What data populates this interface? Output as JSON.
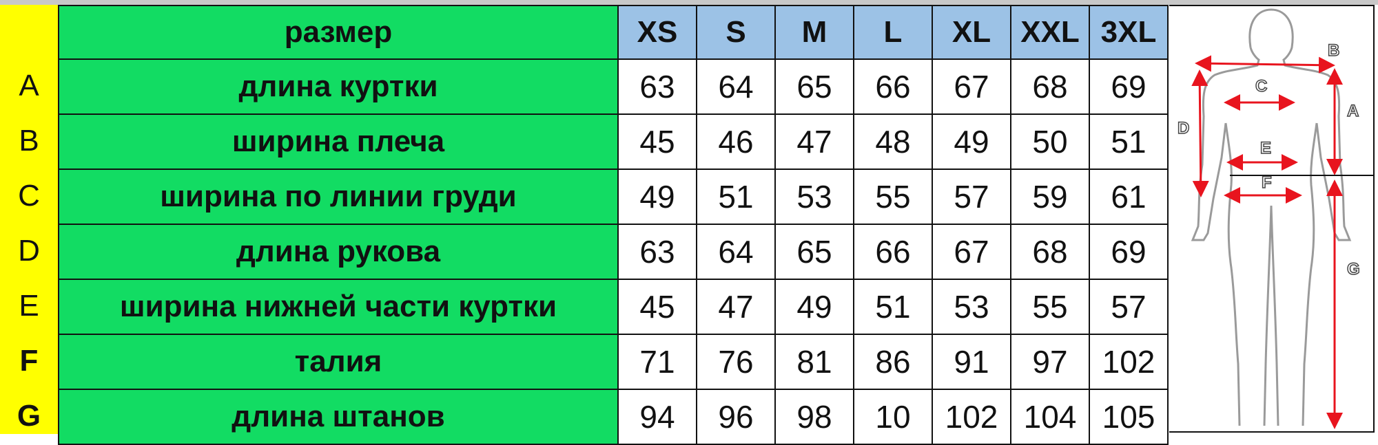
{
  "row_letters": [
    "A",
    "B",
    "C",
    "D",
    "E",
    "F",
    "G"
  ],
  "header": {
    "label": "размер",
    "sizes": [
      "XS",
      "S",
      "M",
      "L",
      "XL",
      "XXL",
      "3XL"
    ]
  },
  "rows": [
    {
      "label": "длина куртки",
      "values": [
        "63",
        "64",
        "65",
        "66",
        "67",
        "68",
        "69"
      ]
    },
    {
      "label": "ширина плеча",
      "values": [
        "45",
        "46",
        "47",
        "48",
        "49",
        "50",
        "51"
      ]
    },
    {
      "label": "ширина по линии груди",
      "values": [
        "49",
        "51",
        "53",
        "55",
        "57",
        "59",
        "61"
      ]
    },
    {
      "label": "длина рукова",
      "values": [
        "63",
        "64",
        "65",
        "66",
        "67",
        "68",
        "69"
      ]
    },
    {
      "label": "ширина нижней части куртки",
      "values": [
        "45",
        "47",
        "49",
        "51",
        "53",
        "55",
        "57"
      ]
    },
    {
      "label": "талия",
      "values": [
        "71",
        "76",
        "81",
        "86",
        "91",
        "97",
        "102"
      ]
    },
    {
      "label": "длина штанов",
      "values": [
        "94",
        "96",
        "98",
        "10",
        "102",
        "104",
        "105"
      ]
    }
  ],
  "figure": {
    "labels": [
      "A",
      "B",
      "C",
      "D",
      "E",
      "F",
      "G"
    ]
  },
  "colors": {
    "label_bg": "#12dc63",
    "header_bg": "#9cc2e6",
    "letter_bg": "#ffff00",
    "arrow": "#e8141e"
  }
}
